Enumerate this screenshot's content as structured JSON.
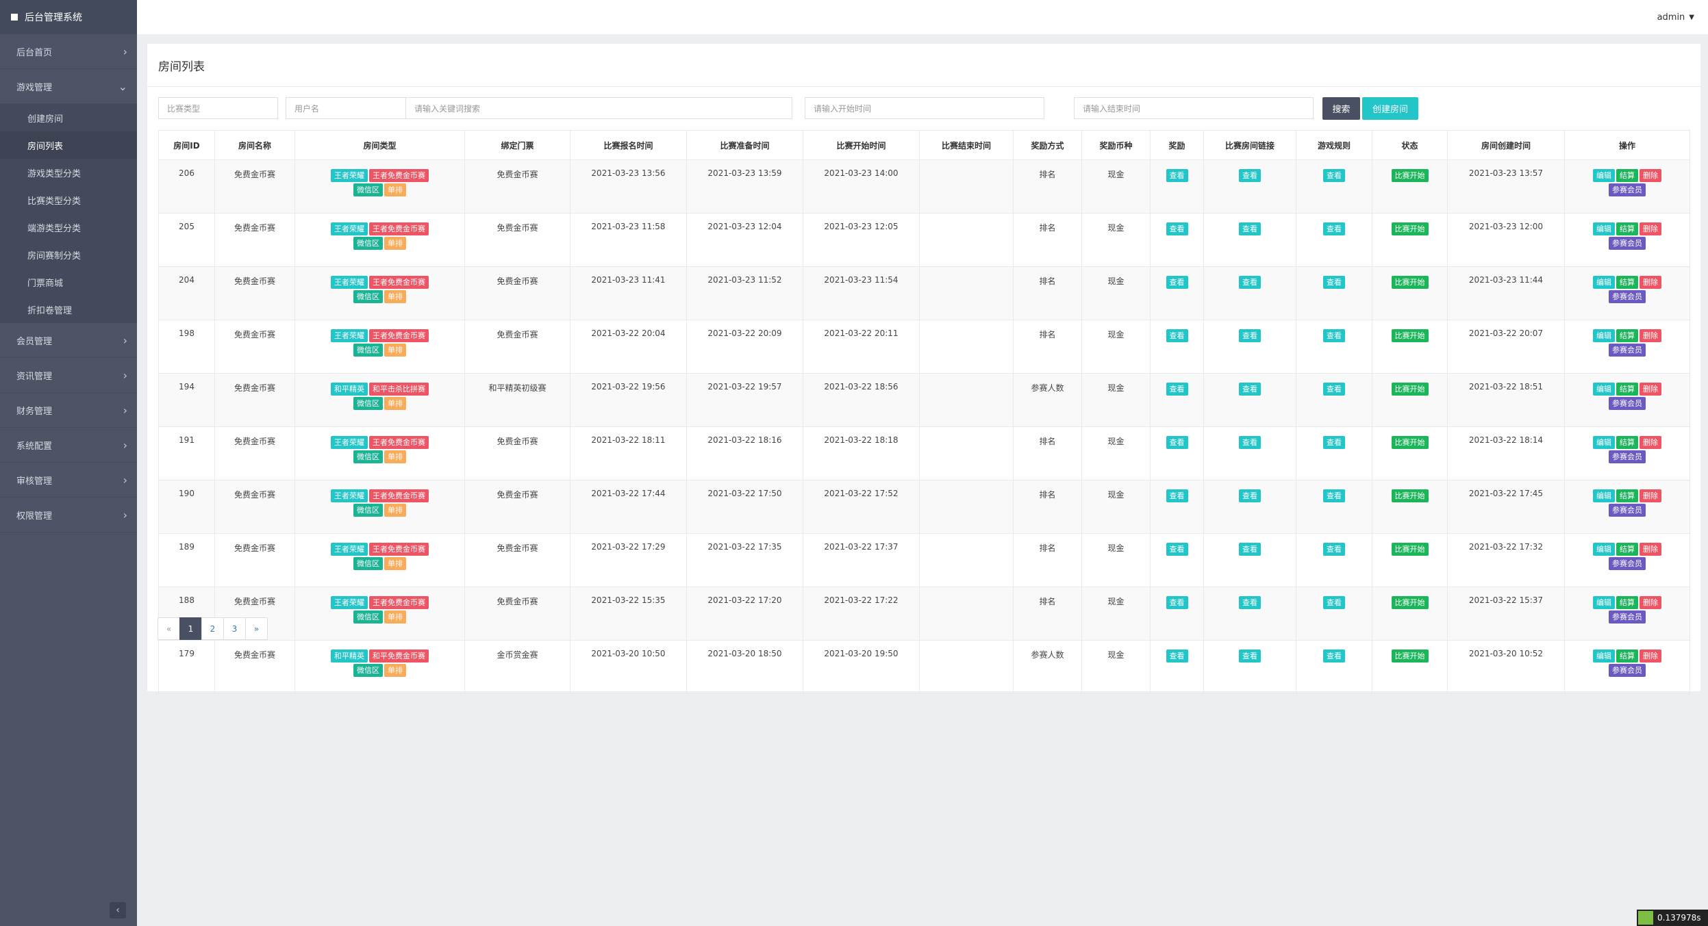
{
  "app": {
    "brand": "后台管理系统",
    "user": "admin"
  },
  "sidebar": {
    "items_top": [
      {
        "label": "后台首页"
      },
      {
        "label": "游戏管理"
      }
    ],
    "subitems": [
      {
        "label": "创建房间"
      },
      {
        "label": "房间列表"
      },
      {
        "label": "游戏类型分类"
      },
      {
        "label": "比赛类型分类"
      },
      {
        "label": "端游类型分类"
      },
      {
        "label": "房间赛制分类"
      },
      {
        "label": "门票商城"
      },
      {
        "label": "折扣卷管理"
      }
    ],
    "items_bottom": [
      {
        "label": "会员管理"
      },
      {
        "label": "资讯管理"
      },
      {
        "label": "财务管理"
      },
      {
        "label": "系统配置"
      },
      {
        "label": "审核管理"
      },
      {
        "label": "权限管理"
      }
    ],
    "collapse_glyph": "‹",
    "chevron_right": "›",
    "chevron_down": "⌄"
  },
  "panel": {
    "title": "房间列表"
  },
  "toolbar": {
    "match_type_placeholder": "比赛类型",
    "username_placeholder": "用户名",
    "keyword_placeholder": "请输入关键词搜索",
    "start_placeholder": "请输入开始时间",
    "end_placeholder": "请输入结束时间",
    "search_label": "搜索",
    "create_label": "创建房间"
  },
  "table": {
    "headers": [
      "房间ID",
      "房间名称",
      "房间类型",
      "绑定门票",
      "比赛报名时间",
      "比赛准备时间",
      "比赛开始时间",
      "比赛结束时间",
      "奖励方式",
      "奖励币种",
      "奖励",
      "比赛房间链接",
      "游戏规则",
      "状态",
      "房间创建时间",
      "操作"
    ],
    "view_label": "查看",
    "status_label": "比赛开始",
    "action_labels": {
      "edit": "编辑",
      "settle": "结算",
      "delete": "删除",
      "members": "参赛会员"
    },
    "rows": [
      {
        "id": "206",
        "name": "免费金币赛",
        "tags": [
          "王者荣耀",
          "王者免费金币赛",
          "微信区",
          "单排"
        ],
        "ticket": "免费金币赛",
        "signup": "2021-03-23 13:56",
        "prepare": "2021-03-23 13:59",
        "start": "2021-03-23 14:00",
        "end": "",
        "reward_mode": "排名",
        "currency": "现金",
        "created": "2021-03-23 13:57"
      },
      {
        "id": "205",
        "name": "免费金币赛",
        "tags": [
          "王者荣耀",
          "王者免费金币赛",
          "微信区",
          "单排"
        ],
        "ticket": "免费金币赛",
        "signup": "2021-03-23 11:58",
        "prepare": "2021-03-23 12:04",
        "start": "2021-03-23 12:05",
        "end": "",
        "reward_mode": "排名",
        "currency": "现金",
        "created": "2021-03-23 12:00"
      },
      {
        "id": "204",
        "name": "免费金币赛",
        "tags": [
          "王者荣耀",
          "王者免费金币赛",
          "微信区",
          "单排"
        ],
        "ticket": "免费金币赛",
        "signup": "2021-03-23 11:41",
        "prepare": "2021-03-23 11:52",
        "start": "2021-03-23 11:54",
        "end": "",
        "reward_mode": "排名",
        "currency": "现金",
        "created": "2021-03-23 11:44"
      },
      {
        "id": "198",
        "name": "免费金币赛",
        "tags": [
          "王者荣耀",
          "王者免费金币赛",
          "微信区",
          "单排"
        ],
        "ticket": "免费金币赛",
        "signup": "2021-03-22 20:04",
        "prepare": "2021-03-22 20:09",
        "start": "2021-03-22 20:11",
        "end": "",
        "reward_mode": "排名",
        "currency": "现金",
        "created": "2021-03-22 20:07"
      },
      {
        "id": "194",
        "name": "免费金币赛",
        "tags": [
          "和平精英",
          "和平击杀比拼赛",
          "微信区",
          "单排"
        ],
        "ticket": "和平精英初级赛",
        "signup": "2021-03-22 19:56",
        "prepare": "2021-03-22 19:57",
        "start": "2021-03-22 18:56",
        "end": "",
        "reward_mode": "参赛人数",
        "currency": "现金",
        "created": "2021-03-22 18:51"
      },
      {
        "id": "191",
        "name": "免费金币赛",
        "tags": [
          "王者荣耀",
          "王者免费金币赛",
          "微信区",
          "单排"
        ],
        "ticket": "免费金币赛",
        "signup": "2021-03-22 18:11",
        "prepare": "2021-03-22 18:16",
        "start": "2021-03-22 18:18",
        "end": "",
        "reward_mode": "排名",
        "currency": "现金",
        "created": "2021-03-22 18:14"
      },
      {
        "id": "190",
        "name": "免费金币赛",
        "tags": [
          "王者荣耀",
          "王者免费金币赛",
          "微信区",
          "单排"
        ],
        "ticket": "免费金币赛",
        "signup": "2021-03-22 17:44",
        "prepare": "2021-03-22 17:50",
        "start": "2021-03-22 17:52",
        "end": "",
        "reward_mode": "排名",
        "currency": "现金",
        "created": "2021-03-22 17:45"
      },
      {
        "id": "189",
        "name": "免费金币赛",
        "tags": [
          "王者荣耀",
          "王者免费金币赛",
          "微信区",
          "单排"
        ],
        "ticket": "免费金币赛",
        "signup": "2021-03-22 17:29",
        "prepare": "2021-03-22 17:35",
        "start": "2021-03-22 17:37",
        "end": "",
        "reward_mode": "排名",
        "currency": "现金",
        "created": "2021-03-22 17:32"
      },
      {
        "id": "188",
        "name": "免费金币赛",
        "tags": [
          "王者荣耀",
          "王者免费金币赛",
          "微信区",
          "单排"
        ],
        "ticket": "免费金币赛",
        "signup": "2021-03-22 15:35",
        "prepare": "2021-03-22 17:20",
        "start": "2021-03-22 17:22",
        "end": "",
        "reward_mode": "排名",
        "currency": "现金",
        "created": "2021-03-22 15:37"
      },
      {
        "id": "179",
        "name": "免费金币赛",
        "tags": [
          "和平精英",
          "和平免费金币赛",
          "微信区",
          "单排"
        ],
        "ticket": "金币赏金赛",
        "signup": "2021-03-20 10:50",
        "prepare": "2021-03-20 18:50",
        "start": "2021-03-20 19:50",
        "end": "",
        "reward_mode": "参赛人数",
        "currency": "现金",
        "created": "2021-03-20 10:52"
      }
    ]
  },
  "pagination": {
    "prev": "«",
    "pages": [
      "1",
      "2",
      "3"
    ],
    "current": "1",
    "next": "»"
  },
  "corner_badge": {
    "text": "0.137978s"
  },
  "colors": {
    "sidebar_bg": "#4e5466",
    "accent_cyan": "#23c6c8",
    "danger_red": "#ed5565",
    "success_green": "#1ab394",
    "warning_yellow": "#f8ac59",
    "purple": "#6a5ac2",
    "dark_btn": "#4a5064"
  }
}
